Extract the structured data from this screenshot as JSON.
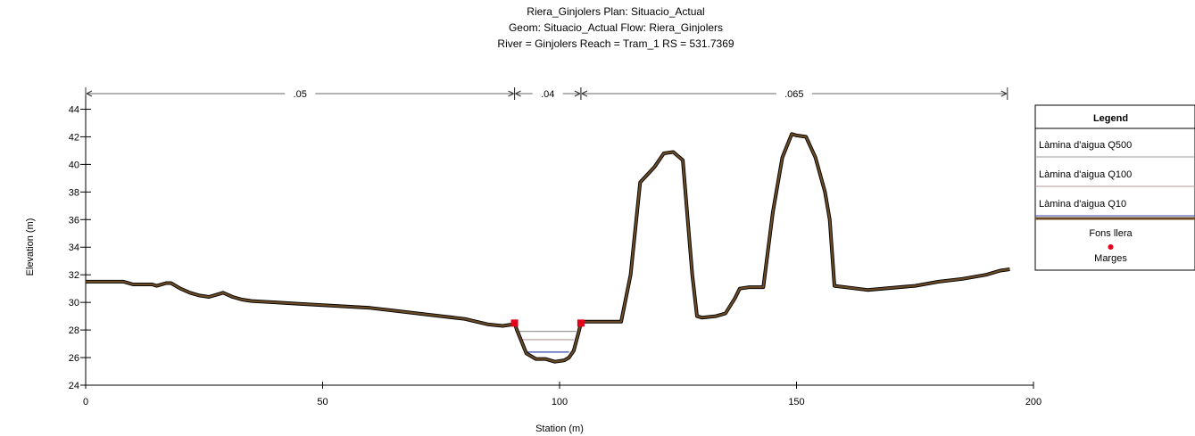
{
  "chart_data": {
    "type": "line",
    "title": [
      "Riera_Ginjolers      Plan: Situacio_Actual",
      "Geom: Situacio_Actual    Flow: Riera_Ginjolers",
      "River = Ginjolers   Reach = Tram_1      RS = 531.7369"
    ],
    "xlabel": "Station (m)",
    "ylabel": "Elevation (m)",
    "xlim": [
      0,
      200
    ],
    "ylim": [
      24,
      45
    ],
    "xticks": [
      0,
      50,
      100,
      150,
      200
    ],
    "yticks": [
      24,
      26,
      28,
      30,
      32,
      34,
      36,
      38,
      40,
      42,
      44
    ],
    "manning_regions": [
      {
        "label": ".05",
        "x_start": 0,
        "x_end": 90.5
      },
      {
        "label": ".04",
        "x_start": 90.5,
        "x_end": 104.5
      },
      {
        "label": ".065",
        "x_start": 104.5,
        "x_end": 194.5
      }
    ],
    "water_surfaces": [
      {
        "name": "Làmina d'aigua Q500",
        "elevation": 27.9,
        "x_start": 91.5,
        "x_end": 103.5,
        "color": "#999999"
      },
      {
        "name": "Làmina d'aigua Q100",
        "elevation": 27.3,
        "x_start": 92.0,
        "x_end": 103.0,
        "color": "#b39999"
      },
      {
        "name": "Làmina d'aigua Q10",
        "elevation": 26.4,
        "x_start": 93.0,
        "x_end": 102.0,
        "color": "#3344aa"
      }
    ],
    "ground": {
      "name": "Fons llera",
      "color": "#6b4a26",
      "x": [
        0,
        5,
        8,
        10,
        12,
        14,
        15,
        17,
        18,
        20,
        22,
        24,
        26,
        28,
        29,
        31,
        33,
        35,
        40,
        45,
        50,
        55,
        60,
        65,
        70,
        75,
        80,
        85,
        88,
        90,
        90.5,
        91,
        93,
        95,
        97,
        99,
        101,
        102,
        103,
        104,
        104.5,
        105,
        108,
        110,
        111,
        113,
        115,
        117,
        120,
        122,
        124,
        126,
        128,
        129,
        130,
        133,
        135,
        137,
        138,
        140,
        142,
        143,
        145,
        147,
        149,
        150,
        152,
        154,
        156,
        157,
        158,
        165,
        175,
        180,
        185,
        190,
        193,
        195
      ],
      "y": [
        31.5,
        31.5,
        31.5,
        31.3,
        31.3,
        31.3,
        31.2,
        31.4,
        31.4,
        31.0,
        30.7,
        30.5,
        30.4,
        30.6,
        30.7,
        30.4,
        30.2,
        30.1,
        30.0,
        29.9,
        29.8,
        29.7,
        29.6,
        29.4,
        29.2,
        29.0,
        28.8,
        28.4,
        28.3,
        28.4,
        28.5,
        28.0,
        26.3,
        25.9,
        25.9,
        25.7,
        25.8,
        26.0,
        26.5,
        27.8,
        28.5,
        28.6,
        28.6,
        28.6,
        28.6,
        28.6,
        32.0,
        38.7,
        39.8,
        40.8,
        40.9,
        40.3,
        32.0,
        29.0,
        28.9,
        29.0,
        29.2,
        30.3,
        31.0,
        31.1,
        31.1,
        31.1,
        36.5,
        40.5,
        42.2,
        42.1,
        42.0,
        40.5,
        38.0,
        36.0,
        31.2,
        30.9,
        31.2,
        31.5,
        31.7,
        32.0,
        32.3,
        32.4
      ]
    },
    "bank_stations": [
      {
        "x": 90.5,
        "y": 28.5
      },
      {
        "x": 104.5,
        "y": 28.5
      }
    ],
    "legend": {
      "title": "Legend",
      "placement": "right",
      "entries": [
        {
          "label": "Làmina d'aigua Q500",
          "kind": "line",
          "color": "#999999"
        },
        {
          "label": "Làmina d'aigua Q100",
          "kind": "line",
          "color": "#b39999"
        },
        {
          "label": "Làmina d'aigua Q10",
          "kind": "line",
          "color": "#3344aa"
        },
        {
          "label": "Fons llera",
          "kind": "thick-line",
          "color": "#6b4a26"
        },
        {
          "label": "Marges",
          "kind": "marker",
          "color": "#e3001b"
        }
      ]
    },
    "grid": false
  }
}
